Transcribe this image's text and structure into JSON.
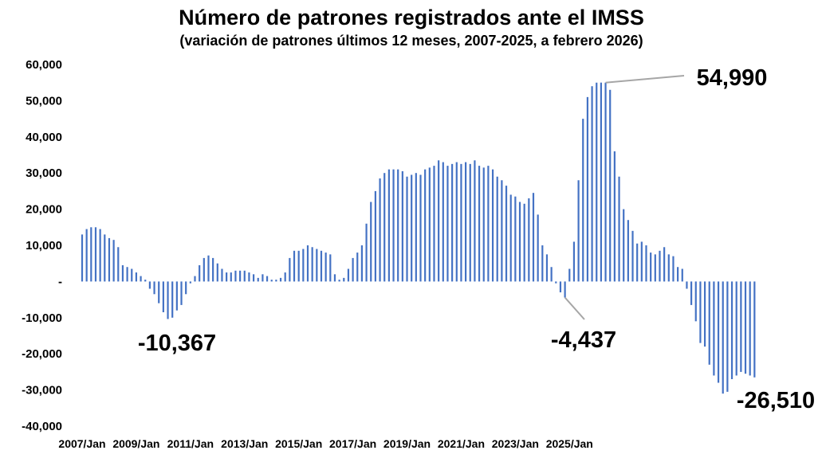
{
  "chart_data": {
    "type": "bar",
    "title": "Número de patrones registrados ante el IMSS",
    "subtitle": "(variación de patrones últimos 12 meses, 2007-2025, a febrero 2026)",
    "xlabel": "",
    "ylabel": "",
    "ylim": [
      -40000,
      60000
    ],
    "grid": false,
    "bar_color": "#4472C4",
    "y_ticks": [
      "60,000",
      "50,000",
      "40,000",
      "30,000",
      "20,000",
      "10,000",
      "-",
      "-10,000",
      "-20,000",
      "-30,000",
      "-40,000"
    ],
    "x_ticks": [
      "2007/Jan",
      "2009/Jan",
      "2011/Jan",
      "2013/Jan",
      "2015/Jan",
      "2017/Jan",
      "2019/Jan",
      "2021/Jan",
      "2023/Jan",
      "2025/Jan"
    ],
    "start_period": "2007/Jan",
    "step_months": 2,
    "series": [
      {
        "values": [
          13000,
          14500,
          15000,
          15000,
          14500,
          13000,
          12000,
          11500,
          9500,
          4500,
          4000,
          3500,
          2500,
          1500,
          500,
          -2000,
          -3500,
          -6000,
          -8500,
          -10367,
          -10000,
          -8000,
          -6500,
          -3500,
          -500,
          1500,
          4500,
          6500,
          7200,
          6500,
          5000,
          3500,
          2500,
          2500,
          3000,
          3000,
          3000,
          2500,
          2000,
          1000,
          2000,
          1500,
          500,
          500,
          1000,
          2500,
          6500,
          8500,
          8500,
          9000,
          10000,
          9500,
          9000,
          8500,
          8000,
          7500,
          2000,
          500,
          1000,
          3500,
          6500,
          8000,
          10000,
          16000,
          22000,
          25000,
          28500,
          30000,
          31000,
          31000,
          31000,
          30500,
          29000,
          29500,
          30000,
          29500,
          31000,
          31500,
          32000,
          33500,
          33000,
          32000,
          32500,
          33000,
          32500,
          33000,
          32500,
          33500,
          32000,
          31500,
          32000,
          31000,
          29000,
          28000,
          26500,
          24000,
          23500,
          22000,
          21500,
          23000,
          24500,
          18500,
          10000,
          7500,
          4000,
          -500,
          -3000,
          -4437,
          3500,
          11000,
          28000,
          45000,
          51000,
          54000,
          54990,
          55000,
          54990,
          53000,
          36000,
          29000,
          20000,
          17000,
          14000,
          10500,
          11000,
          10000,
          8000,
          7500,
          8500,
          9500,
          7500,
          7000,
          4000,
          3500,
          -2000,
          -6500,
          -11000,
          -17000,
          -18000,
          -23000,
          -26000,
          -28000,
          -31000,
          -30500,
          -27000,
          -26000,
          -25000,
          -25500,
          -26000,
          -26510
        ]
      }
    ],
    "annotations": [
      {
        "label": "54,990",
        "value": 54990,
        "index": 116
      },
      {
        "label": "-10,367",
        "value": -10367,
        "index": 19
      },
      {
        "label": "-4,437",
        "value": -4437,
        "index": 107
      },
      {
        "label": "-26,510",
        "value": -26510,
        "index": 153
      }
    ]
  }
}
